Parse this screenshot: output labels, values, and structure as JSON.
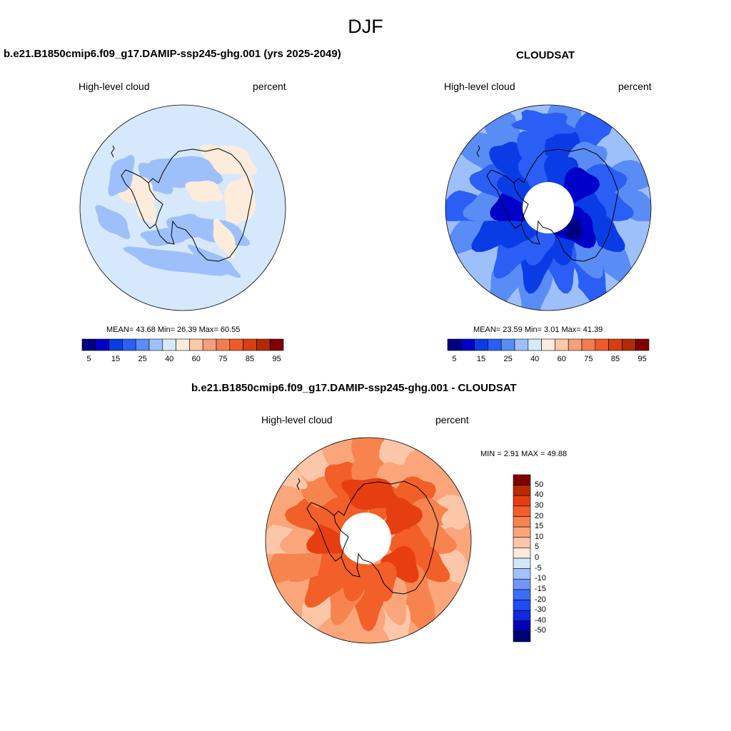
{
  "figure_title": "DJF",
  "colors": {
    "abs_palette": [
      "#000080",
      "#0000c8",
      "#0a3ce6",
      "#2a5ef5",
      "#5a8cf5",
      "#9ec0fa",
      "#d6e8fb",
      "#fdecdc",
      "#fbc8a8",
      "#f5a07a",
      "#f27c4e",
      "#ee5a28",
      "#d73e10",
      "#b02a06",
      "#800000"
    ],
    "diff_palette": [
      "#000070",
      "#0000b8",
      "#1428e0",
      "#1e4ef2",
      "#3a6ef5",
      "#6e98f7",
      "#a4c2fa",
      "#d4e6fb",
      "#fde8da",
      "#fcc7a8",
      "#faa57a",
      "#f7844f",
      "#f25f28",
      "#e63e10",
      "#b82a04",
      "#800000"
    ],
    "coastline": "#000000",
    "missing": "#ffffff"
  },
  "panels": {
    "model": {
      "title": "b.e21.B1850cmip6.f09_g17.DAMIP-ssp245-ghg.001 (yrs 2025-2049)",
      "variable": "High-level cloud",
      "units": "percent",
      "stats": "MEAN=  43.68  Min=  26.39  Max=  60.55",
      "mean": 43.68,
      "min": 26.39,
      "max": 60.55
    },
    "obs": {
      "title": "CLOUDSAT",
      "variable": "High-level cloud",
      "units": "percent",
      "stats": "MEAN=  23.59  Min=   3.01  Max=  41.39",
      "mean": 23.59,
      "min": 3.01,
      "max": 41.39
    },
    "diff": {
      "title": "b.e21.B1850cmip6.f09_g17.DAMIP-ssp245-ghg.001 - CLOUDSAT",
      "variable": "High-level cloud",
      "units": "percent",
      "stats": "MIN =   2.91 MAX =  49.88",
      "min": 2.91,
      "max": 49.88
    }
  },
  "colorbar_abs": {
    "labels": [
      "5",
      "15",
      "25",
      "40",
      "60",
      "75",
      "85",
      "95"
    ]
  },
  "colorbar_diff": {
    "labels": [
      "50",
      "40",
      "30",
      "20",
      "15",
      "10",
      "5",
      "0",
      "-5",
      "-10",
      "-15",
      "-20",
      "-30",
      "-40",
      "-50"
    ]
  }
}
